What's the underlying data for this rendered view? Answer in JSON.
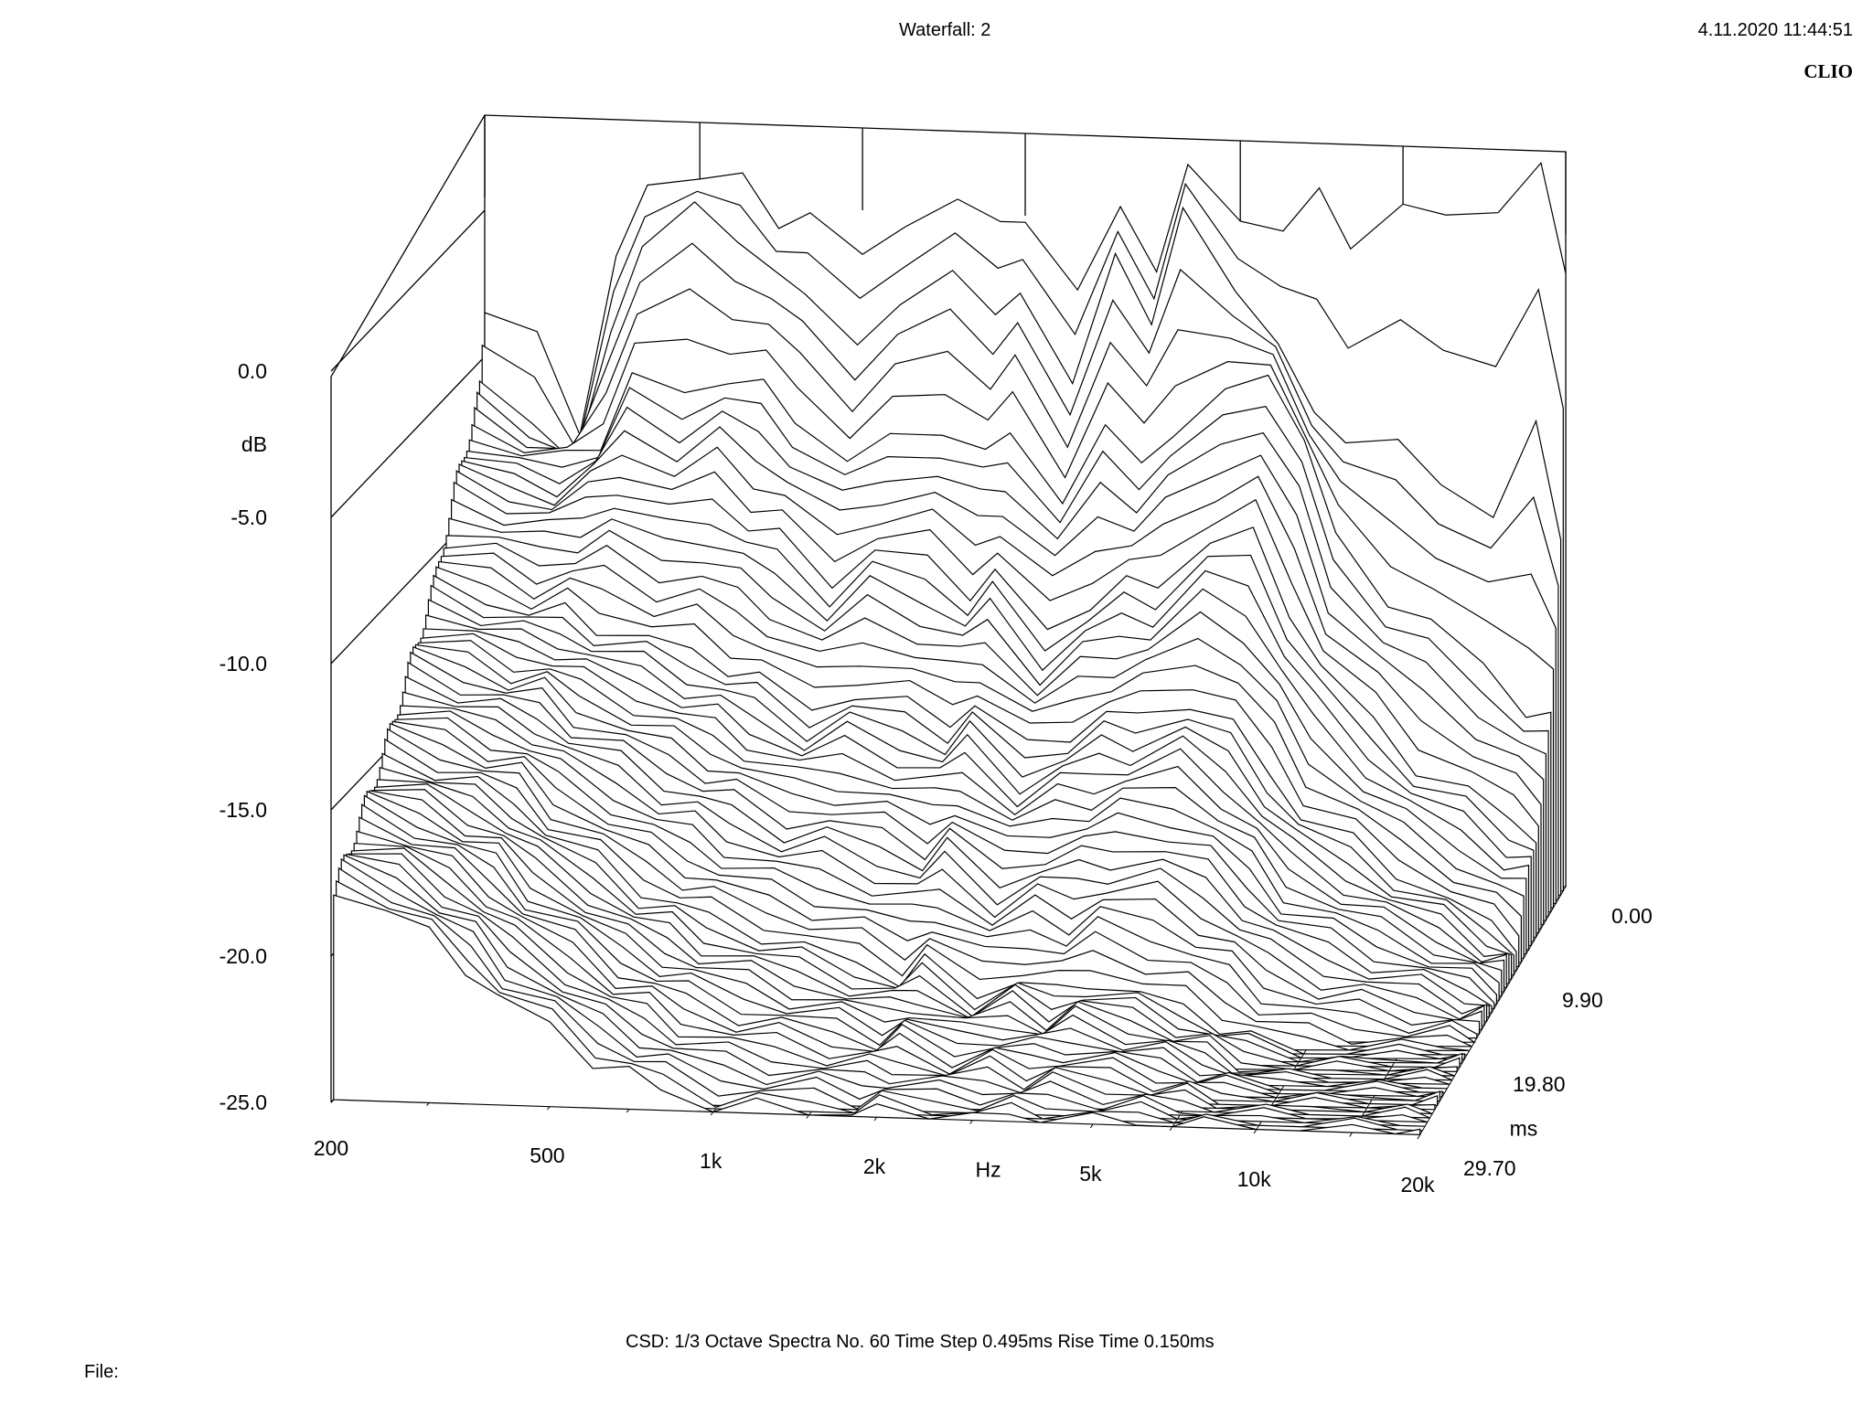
{
  "header": {
    "title": "Waterfall: 2",
    "timestamp": "4.11.2020 11:44:51",
    "brand": "CLIO"
  },
  "footer": {
    "settings": "CSD:   1/3 Octave   Spectra No. 60   Time Step 0.495ms   Rise Time 0.150ms",
    "file_label": "File:"
  },
  "chart_data": {
    "type": "waterfall",
    "title": "Waterfall: 2",
    "xlabel": "Hz",
    "ylabel": "dB",
    "zlabel": "ms",
    "x_scale": "log",
    "xlim": [
      200,
      20000
    ],
    "ylim": [
      -25,
      0
    ],
    "zlim": [
      0,
      29.7
    ],
    "x_ticks": [
      "200",
      "500",
      "1k",
      "2k",
      "5k",
      "10k",
      "20k"
    ],
    "x_tick_values": [
      200,
      500,
      1000,
      2000,
      5000,
      10000,
      20000
    ],
    "y_ticks": [
      "0.0",
      "-5.0",
      "-10.0",
      "-15.0",
      "-20.0",
      "-25.0"
    ],
    "y_tick_values": [
      0,
      -5,
      -10,
      -15,
      -20,
      -25
    ],
    "z_ticks": [
      "0.00",
      "9.90",
      "19.80",
      "29.70"
    ],
    "z_tick_values": [
      0,
      9.9,
      19.8,
      29.7
    ],
    "spectra_count": 60,
    "time_step_ms": 0.495,
    "freq_hz": [
      200,
      250,
      300,
      350,
      400,
      500,
      600,
      700,
      800,
      1000,
      1200,
      1500,
      1800,
      2000,
      2500,
      3000,
      3500,
      4000,
      5000,
      6000,
      7000,
      8000,
      10000,
      12000,
      15000,
      18000,
      20000
    ],
    "series": [
      {
        "time_ms": 0.0,
        "values": [
          -3.5,
          -4.5,
          -7.5,
          -2.0,
          0.5,
          1.0,
          0.5,
          -1.0,
          -0.5,
          -2.5,
          -1.0,
          -0.5,
          -1.5,
          -1.0,
          -4.0,
          -1.0,
          -3.0,
          0.0,
          -1.5,
          -2.0,
          -1.0,
          -2.5,
          -1.5,
          -2.0,
          -1.5,
          -0.5,
          -4.0
        ]
      },
      {
        "time_ms": 0.99,
        "values": [
          -6.0,
          -7.0,
          -8.5,
          -4.5,
          -1.0,
          0.0,
          -1.5,
          -2.0,
          -3.5,
          -5.0,
          -3.5,
          -3.0,
          -4.0,
          -3.5,
          -7.0,
          -2.0,
          -5.0,
          -1.0,
          -3.5,
          -6.0,
          -8.0,
          -9.0,
          -9.5,
          -10.5,
          -12.0,
          -9.0,
          -12.5
        ]
      },
      {
        "time_ms": 2.97,
        "values": [
          -7.0,
          -8.0,
          -8.0,
          -7.5,
          -5.5,
          -6.0,
          -5.5,
          -6.0,
          -7.0,
          -8.5,
          -8.0,
          -7.5,
          -8.5,
          -8.0,
          -10.0,
          -8.0,
          -9.0,
          -8.0,
          -7.0,
          -6.0,
          -8.5,
          -12.0,
          -14.0,
          -15.0,
          -16.5,
          -18.0,
          -18.5
        ]
      },
      {
        "time_ms": 5.94,
        "values": [
          -8.5,
          -9.0,
          -9.5,
          -9.0,
          -8.5,
          -9.5,
          -9.0,
          -10.0,
          -10.5,
          -12.0,
          -11.0,
          -11.5,
          -12.5,
          -12.0,
          -14.0,
          -13.0,
          -12.5,
          -12.5,
          -11.0,
          -11.0,
          -13.5,
          -15.5,
          -17.5,
          -19.0,
          -20.0,
          -21.0,
          -21.5
        ]
      },
      {
        "time_ms": 9.9,
        "values": [
          -11.0,
          -11.5,
          -12.0,
          -12.0,
          -12.5,
          -13.0,
          -13.5,
          -14.0,
          -14.5,
          -15.5,
          -15.0,
          -15.5,
          -16.0,
          -15.5,
          -17.0,
          -16.5,
          -16.0,
          -16.0,
          -15.5,
          -16.5,
          -18.0,
          -19.5,
          -20.5,
          -21.5,
          -22.5,
          -23.5,
          -24.0
        ]
      },
      {
        "time_ms": 19.8,
        "values": [
          -15.0,
          -15.5,
          -16.0,
          -16.5,
          -17.5,
          -18.5,
          -19.5,
          -20.0,
          -20.5,
          -21.0,
          -21.5,
          -22.0,
          -22.5,
          -22.0,
          -23.0,
          -22.5,
          -23.0,
          -22.5,
          -23.0,
          -23.5,
          -24.0,
          -24.5,
          -25.0,
          -25.0,
          -25.0,
          -25.0,
          -25.0
        ]
      },
      {
        "time_ms": 29.7,
        "values": [
          -18.0,
          -18.5,
          -19.5,
          -20.5,
          -21.5,
          -22.5,
          -23.5,
          -24.0,
          -24.5,
          -25.0,
          -25.0,
          -25.0,
          -25.0,
          -25.0,
          -25.0,
          -25.0,
          -25.0,
          -25.0,
          -25.0,
          -25.0,
          -25.0,
          -25.0,
          -25.0,
          -25.0,
          -25.0,
          -25.0,
          -25.0
        ]
      }
    ],
    "grid": true,
    "line_color": "#000000"
  }
}
